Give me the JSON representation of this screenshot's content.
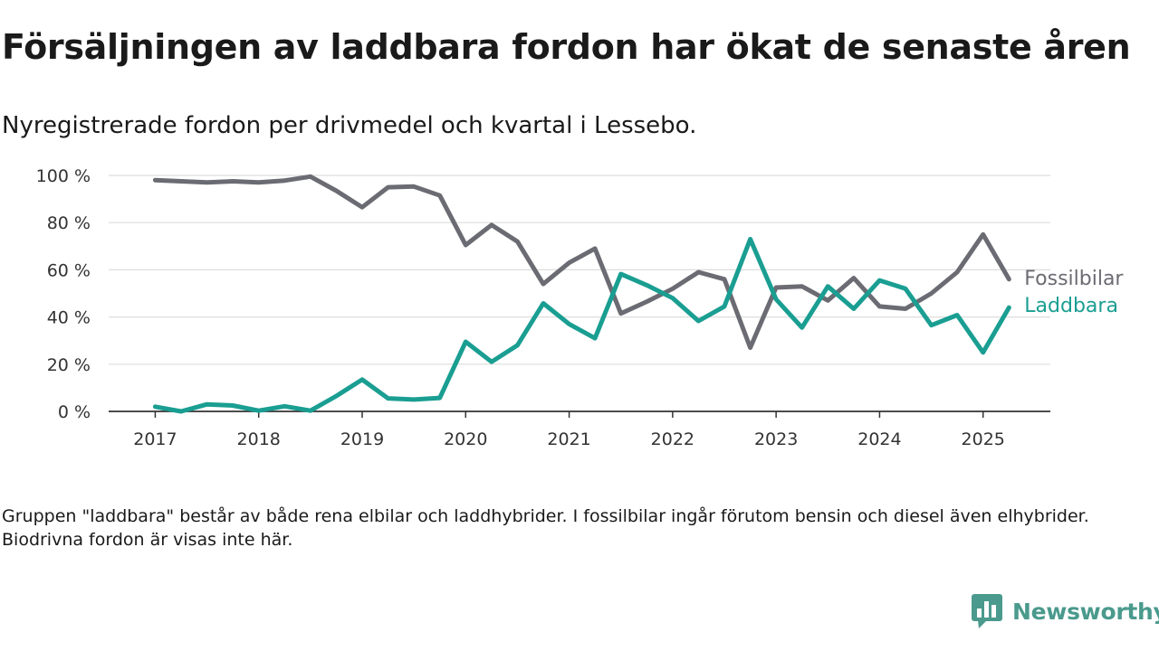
{
  "title": "Försäljningen av laddbara fordon har ökat de senaste åren",
  "subtitle": "Nyregistrerade fordon per drivmedel och kvartal i Lessebo.",
  "footnote": "Gruppen \"laddbara\" består av både rena elbilar och laddhybrider. I fossilbilar ingår förutom bensin och diesel även elhybrider. Biodrivna fordon är visas inte här.",
  "brand": {
    "name": "Newsworthy",
    "icon": "chart-bubble-icon",
    "color": "#4a9a8d"
  },
  "chart_data": {
    "type": "line",
    "x": [
      2017.0,
      2017.25,
      2017.5,
      2017.75,
      2018.0,
      2018.25,
      2018.5,
      2018.75,
      2019.0,
      2019.25,
      2019.5,
      2019.75,
      2020.0,
      2020.25,
      2020.5,
      2020.75,
      2021.0,
      2021.25,
      2021.5,
      2021.75,
      2022.0,
      2022.25,
      2022.5,
      2022.75,
      2023.0,
      2023.25,
      2023.5,
      2023.75,
      2024.0,
      2024.25,
      2024.5,
      2024.75,
      2025.0,
      2025.25
    ],
    "xticks": [
      "2017",
      "2018",
      "2019",
      "2020",
      "2021",
      "2022",
      "2023",
      "2024",
      "2025"
    ],
    "xtick_values": [
      2017,
      2018,
      2019,
      2020,
      2021,
      2022,
      2023,
      2024,
      2025
    ],
    "xlim": [
      2016.55,
      2025.65
    ],
    "ylim": [
      0,
      100
    ],
    "yticks": [
      "0 %",
      "20 %",
      "40 %",
      "60 %",
      "80 %",
      "100 %"
    ],
    "ytick_values": [
      0,
      20,
      40,
      60,
      80,
      100
    ],
    "grid": true,
    "series": [
      {
        "name": "Fossilbilar",
        "color": "#6b6b73",
        "values": [
          98,
          97.5,
          97,
          97.5,
          97,
          97.8,
          99.5,
          93.5,
          86.5,
          95,
          95.3,
          91.5,
          70.5,
          79,
          72,
          54,
          63,
          69,
          41.5,
          46.5,
          52,
          59,
          56,
          27,
          52.5,
          53,
          47,
          56.5,
          44.5,
          43.5,
          50,
          59,
          75,
          56
        ]
      },
      {
        "name": "Laddbara",
        "color": "#1a9e92",
        "values": [
          2,
          0,
          3,
          2.5,
          0.3,
          2.2,
          0.3,
          6.5,
          13.5,
          5.5,
          5,
          5.7,
          29.5,
          21,
          28,
          45.8,
          37,
          31,
          58.2,
          53.5,
          48,
          38.3,
          44.5,
          73,
          47.5,
          35.5,
          53,
          43.5,
          55.5,
          52,
          36.5,
          40.8,
          25,
          44
        ]
      }
    ]
  }
}
